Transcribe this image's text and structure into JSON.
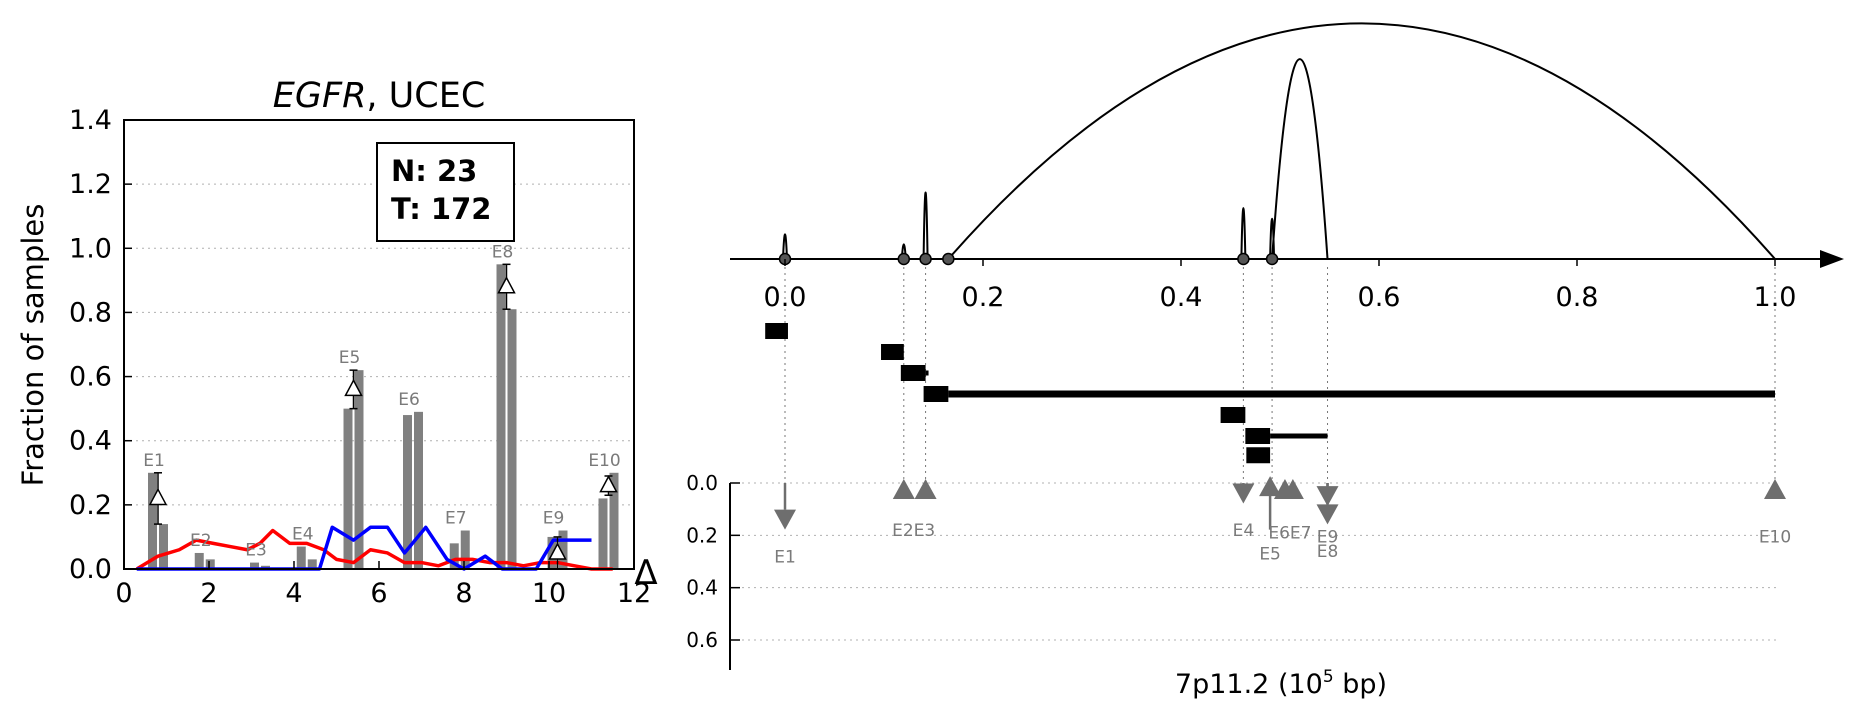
{
  "colors": {
    "bar": "#808080",
    "label_gray": "#7a7a7a",
    "normal_line": "#ff0000",
    "tumor_line": "#0000ff",
    "grid": "#b0b0b0",
    "triangle": "#6e6e6e"
  },
  "chart_data": [
    {
      "type": "bar",
      "title_italic": "EGFR",
      "title_rest": ", UCEC",
      "ylabel": "Fraction of samples",
      "xlim": [
        0,
        12
      ],
      "ylim": [
        0,
        1.4
      ],
      "x_ticks": [
        "0",
        "2",
        "4",
        "6",
        "8",
        "10",
        "12"
      ],
      "y_ticks": [
        "0.0",
        "0.2",
        "0.4",
        "0.6",
        "0.8",
        "1.0",
        "1.2",
        "1.4"
      ],
      "grid": "horizontal dotted",
      "legend": {
        "placement": "top-center",
        "n_label": "N: 23",
        "t_label": "T: 172"
      },
      "exons": [
        {
          "label": "E1",
          "x": 0.8,
          "normal": 0.3,
          "tumor": 0.14,
          "delta": 0.22,
          "err": 0.08
        },
        {
          "label": "E2",
          "x": 1.9,
          "normal": 0.05,
          "tumor": 0.03,
          "delta": null,
          "err": null
        },
        {
          "label": "E3",
          "x": 3.2,
          "normal": 0.02,
          "tumor": 0.01,
          "delta": null,
          "err": null
        },
        {
          "label": "E4",
          "x": 4.3,
          "normal": 0.07,
          "tumor": 0.03,
          "delta": null,
          "err": null
        },
        {
          "label": "E5",
          "x": 5.4,
          "normal": 0.5,
          "tumor": 0.62,
          "delta": 0.56,
          "err": 0.06
        },
        {
          "label": "E6",
          "x": 6.8,
          "normal": 0.48,
          "tumor": 0.49,
          "delta": null,
          "err": null
        },
        {
          "label": "E7",
          "x": 7.9,
          "normal": 0.08,
          "tumor": 0.12,
          "delta": null,
          "err": null
        },
        {
          "label": "E8",
          "x": 9.0,
          "normal": 0.95,
          "tumor": 0.81,
          "delta": 0.88,
          "err": 0.07
        },
        {
          "label": "E9",
          "x": 10.2,
          "normal": 0.1,
          "tumor": 0.12,
          "delta": 0.05,
          "err": 0.05
        },
        {
          "label": "E10",
          "x": 11.4,
          "normal": 0.22,
          "tumor": 0.3,
          "delta": 0.26,
          "err": 0.03
        }
      ],
      "series": [
        {
          "color": "red",
          "x": [
            0.3,
            0.8,
            1.3,
            1.7,
            2.1,
            2.5,
            2.9,
            3.2,
            3.5,
            3.9,
            4.3,
            4.7,
            5.0,
            5.4,
            5.8,
            6.2,
            6.6,
            7.0,
            7.4,
            7.8,
            8.2,
            8.6,
            9.0,
            9.4,
            9.8,
            10.2,
            10.6,
            11.0,
            11.5
          ],
          "y": [
            0.0,
            0.04,
            0.06,
            0.09,
            0.08,
            0.07,
            0.06,
            0.08,
            0.12,
            0.08,
            0.08,
            0.06,
            0.03,
            0.02,
            0.06,
            0.05,
            0.02,
            0.02,
            0.01,
            0.03,
            0.03,
            0.02,
            0.02,
            0.01,
            0.02,
            0.02,
            0.01,
            0.0,
            0.0
          ]
        },
        {
          "color": "blue",
          "x": [
            0.3,
            2.0,
            4.6,
            4.9,
            5.4,
            5.8,
            6.2,
            6.6,
            7.1,
            7.6,
            8.0,
            8.5,
            8.9,
            9.3,
            9.7,
            10.1,
            10.5,
            11.0
          ],
          "y": [
            0.0,
            0.0,
            0.0,
            0.13,
            0.09,
            0.13,
            0.13,
            0.05,
            0.13,
            0.03,
            0.0,
            0.04,
            0.0,
            0.0,
            0.0,
            0.09,
            0.09,
            0.09
          ]
        }
      ]
    },
    {
      "type": "diagram",
      "xlim": [
        0,
        1
      ],
      "x_ticks": [
        "0.0",
        "0.2",
        "0.4",
        "0.6",
        "0.8",
        "1.0"
      ],
      "axis_label_pre": "7p11.2 (10",
      "axis_label_sup": "5",
      "axis_label_post": " bp)",
      "delta_label": "Δ",
      "delta_ticks": [
        "0.0",
        "0.2",
        "0.4",
        "0.6"
      ],
      "delta_ylim": [
        0,
        0.7
      ],
      "nodes": [
        0.0,
        0.12,
        0.142,
        0.165,
        0.463,
        0.492
      ],
      "spikes": [
        {
          "x": 0.0,
          "h": 0.33
        },
        {
          "x": 0.12,
          "h": 0.17
        },
        {
          "x": 0.142,
          "h": 1.0
        },
        {
          "x": 0.463,
          "h": 0.75
        },
        {
          "x": 0.492,
          "h": 0.58
        }
      ],
      "arcs": [
        {
          "x0": 0.165,
          "x1": 1.0,
          "h": 1.45
        },
        {
          "x0": 0.492,
          "x1": 0.548,
          "h": 1.23
        }
      ],
      "exon_blocks": [
        {
          "x0": -0.02,
          "x1": 0.003,
          "y": 0.9,
          "tail": null
        },
        {
          "x0": 0.097,
          "x1": 0.12,
          "y": 0.66,
          "tail": null
        },
        {
          "x0": 0.117,
          "x1": 0.142,
          "y": 0.42,
          "tail": 0.145
        },
        {
          "x0": 0.14,
          "x1": 0.165,
          "y": 0.18,
          "tail": 1.0
        },
        {
          "x0": 0.44,
          "x1": 0.465,
          "y": -0.06,
          "tail": null
        },
        {
          "x0": 0.465,
          "x1": 0.49,
          "y": -0.3,
          "tail": 0.548
        },
        {
          "x0": 0.466,
          "x1": 0.49,
          "y": -0.52,
          "tail": null
        }
      ],
      "markers": [
        {
          "label": "E1",
          "x": 0.0,
          "dir": "down",
          "delta": 0.14,
          "lx": 0.0,
          "ly": 0.28
        },
        {
          "label": "E2E3",
          "x": 0.12,
          "dir": "up",
          "delta": 0.04,
          "lx": 0.13,
          "ly": 0.18
        },
        {
          "label": "",
          "x": 0.142,
          "dir": "up",
          "delta": 0.04,
          "lx": null,
          "ly": null
        },
        {
          "label": "E4",
          "x": 0.463,
          "dir": "down",
          "delta": 0.04,
          "lx": 0.463,
          "ly": 0.18
        },
        {
          "label": "E5",
          "x": 0.49,
          "dir": "up",
          "delta": 0.14,
          "lx": 0.49,
          "ly": 0.27
        },
        {
          "label": "E6E7",
          "x": 0.505,
          "dir": "up",
          "delta": 0.04,
          "lx": 0.51,
          "ly": 0.19
        },
        {
          "label": "",
          "x": 0.513,
          "dir": "up",
          "delta": 0.04,
          "lx": null,
          "ly": null
        },
        {
          "label": "E9",
          "x": 0.548,
          "dir": "down",
          "delta": 0.05,
          "lx": 0.548,
          "ly": 0.205
        },
        {
          "label": "E8",
          "x": 0.548,
          "dir": "down",
          "delta": 0.12,
          "lx": 0.548,
          "ly": 0.26
        },
        {
          "label": "E10",
          "x": 1.0,
          "dir": "up",
          "delta": 0.04,
          "lx": 1.0,
          "ly": 0.205
        }
      ]
    }
  ]
}
